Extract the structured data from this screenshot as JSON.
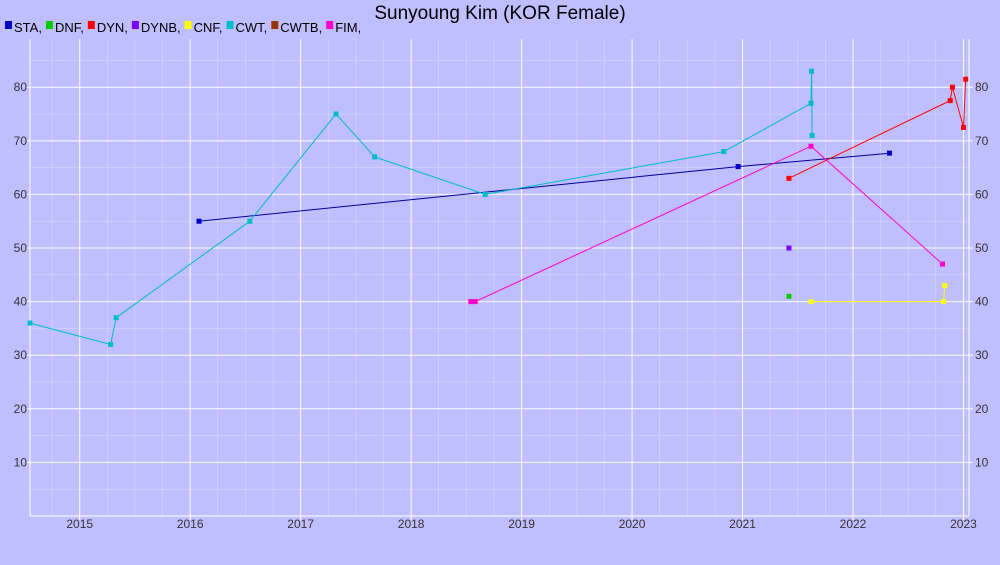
{
  "chart_data": {
    "type": "line",
    "title": "Sunyoung Kim (KOR Female)",
    "xlabel": "",
    "ylabel": "",
    "xlim": [
      2014.55,
      2023.05
    ],
    "ylim": [
      0,
      89
    ],
    "x_ticks": [
      "2015",
      "2016",
      "2017",
      "2018",
      "2019",
      "2020",
      "2021",
      "2022",
      "2023"
    ],
    "y_ticks": [
      10,
      20,
      30,
      40,
      50,
      60,
      70,
      80
    ],
    "grid": true,
    "legend_position": "top-left",
    "legend": [
      {
        "label": "STA,",
        "color": "#0000cc"
      },
      {
        "label": "DNF,",
        "color": "#00cc00"
      },
      {
        "label": "DYN,",
        "color": "#ff0000"
      },
      {
        "label": "DYNB,",
        "color": "#7f00ff"
      },
      {
        "label": "CNF,",
        "color": "#ffff00"
      },
      {
        "label": "CWT,",
        "color": "#00bbcc"
      },
      {
        "label": "CWTB,",
        "color": "#993300"
      },
      {
        "label": "FIM,",
        "color": "#ff00cc"
      }
    ],
    "series": [
      {
        "key": "STA",
        "color": "#0000cc",
        "line_color": "#000099",
        "points": [
          [
            2016.08,
            55
          ],
          [
            2020.96,
            65.2
          ],
          [
            2022.33,
            67.7
          ]
        ]
      },
      {
        "key": "DNF",
        "color": "#00cc00",
        "line_color": "#00cc00",
        "points": [
          [
            2021.42,
            41
          ]
        ]
      },
      {
        "key": "DYN",
        "color": "#ff0000",
        "line_color": "#ff0000",
        "points": [
          [
            2021.42,
            63
          ],
          [
            2022.88,
            77.5
          ],
          [
            2022.9,
            80
          ],
          [
            2023.0,
            72.5
          ],
          [
            2023.02,
            81.5
          ]
        ]
      },
      {
        "key": "DYNB",
        "color": "#7f00ff",
        "line_color": "#7f00ff",
        "points": [
          [
            2021.42,
            50
          ]
        ]
      },
      {
        "key": "CNF",
        "color": "#ffff00",
        "line_color": "#ffff00",
        "points": [
          [
            2021.62,
            40
          ],
          [
            2022.82,
            40
          ],
          [
            2022.83,
            43
          ]
        ]
      },
      {
        "key": "CWT",
        "color": "#00bbcc",
        "line_color": "#00bbcc",
        "points": [
          [
            2014.55,
            36
          ],
          [
            2015.28,
            32
          ],
          [
            2015.33,
            37
          ],
          [
            2016.54,
            55
          ],
          [
            2017.32,
            75
          ],
          [
            2017.67,
            67
          ],
          [
            2018.67,
            60
          ],
          [
            2020.83,
            68
          ],
          [
            2021.62,
            77
          ],
          [
            2021.625,
            83
          ],
          [
            2021.63,
            71
          ]
        ]
      },
      {
        "key": "FIM",
        "color": "#ff00cc",
        "line_color": "#ff00cc",
        "points": [
          [
            2018.54,
            40
          ],
          [
            2018.58,
            40
          ],
          [
            2021.62,
            69
          ],
          [
            2022.81,
            47
          ]
        ]
      }
    ]
  }
}
